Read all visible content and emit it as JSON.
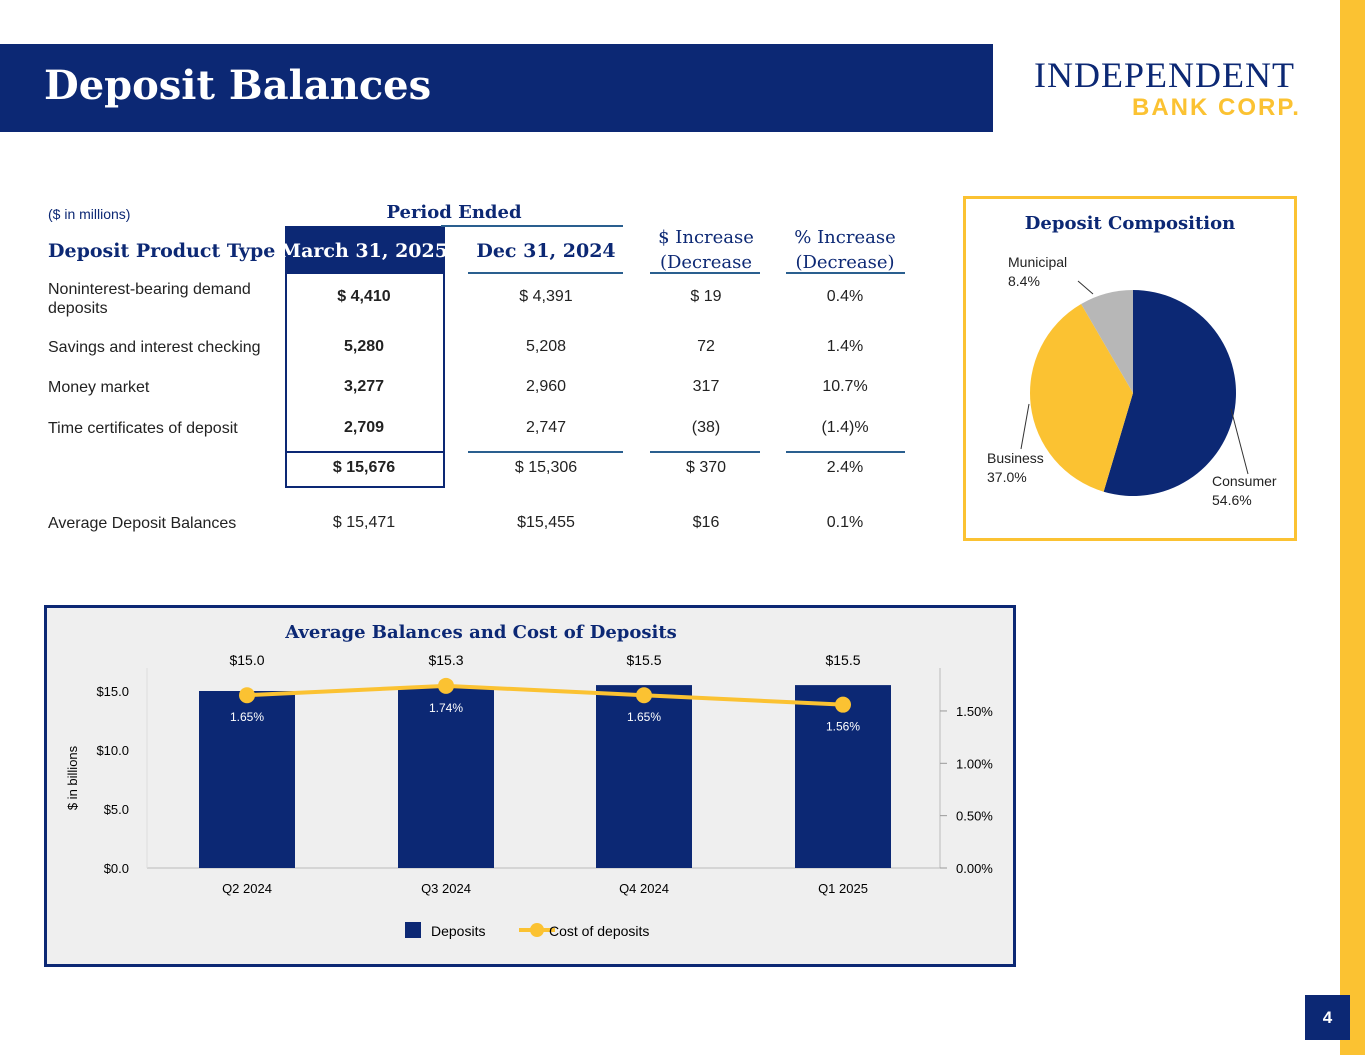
{
  "header": {
    "title": "Deposit Balances",
    "logo_line1": "INDEPENDENT",
    "logo_line2": "BANK CORP.",
    "page_number": "4"
  },
  "table": {
    "units": "($ in millions)",
    "period_label": "Period Ended",
    "headers": [
      "Deposit Product Type",
      "March 31, 2025",
      "Dec 31, 2024",
      "$ Increase (Decrease",
      "% Increase (Decrease)"
    ],
    "rows": [
      [
        "Noninterest-bearing demand deposits",
        "$ 4,410",
        "$ 4,391",
        "$ 19",
        "0.4%"
      ],
      [
        "Savings and interest checking",
        "5,280",
        "5,208",
        "72",
        "1.4%"
      ],
      [
        "Money market",
        "3,277",
        "2,960",
        "317",
        "10.7%"
      ],
      [
        "Time certificates of deposit",
        "2,709",
        "2,747",
        "(38)",
        "(1.4)%"
      ],
      [
        "",
        "$ 15,676",
        "$ 15,306",
        "$ 370",
        "2.4%"
      ],
      [
        "Average Deposit Balances",
        "$ 15,471",
        "$15,455",
        "$16",
        "0.1%"
      ]
    ]
  },
  "pie": {
    "title": "Deposit Composition",
    "slices": [
      {
        "label": "Consumer",
        "pct_label": "54.6%",
        "value": 54.6,
        "color": "#0c2874"
      },
      {
        "label": "Business",
        "pct_label": "37.0%",
        "value": 37.0,
        "color": "#fbc232"
      },
      {
        "label": "Municipal",
        "pct_label": "8.4%",
        "value": 8.4,
        "color": "#b7b7b7"
      }
    ]
  },
  "chart_data": {
    "type": "bar+line",
    "title": "Average Balances and Cost of Deposits",
    "categories": [
      "Q2 2024",
      "Q3 2024",
      "Q4 2024",
      "Q1 2025"
    ],
    "series": [
      {
        "name": "Deposits",
        "axis": "left",
        "values": [
          15.0,
          15.3,
          15.5,
          15.5
        ],
        "labels": [
          "$15.0",
          "$15.3",
          "$15.5",
          "$15.5"
        ],
        "color": "#0c2874"
      },
      {
        "name": "Cost of deposits",
        "axis": "right",
        "values": [
          1.65,
          1.74,
          1.65,
          1.56
        ],
        "labels": [
          "1.65%",
          "1.74%",
          "1.65%",
          "1.56%"
        ],
        "color": "#fbc232"
      }
    ],
    "ylabel": "$ in billions",
    "ylim": [
      0,
      17
    ],
    "yticks": [
      "$0.0",
      "$5.0",
      "$10.0",
      "$15.0"
    ],
    "y2lim": [
      0,
      1.9
    ],
    "y2ticks": [
      "0.00%",
      "0.50%",
      "1.00%",
      "1.50%"
    ],
    "legend": "bottom"
  }
}
